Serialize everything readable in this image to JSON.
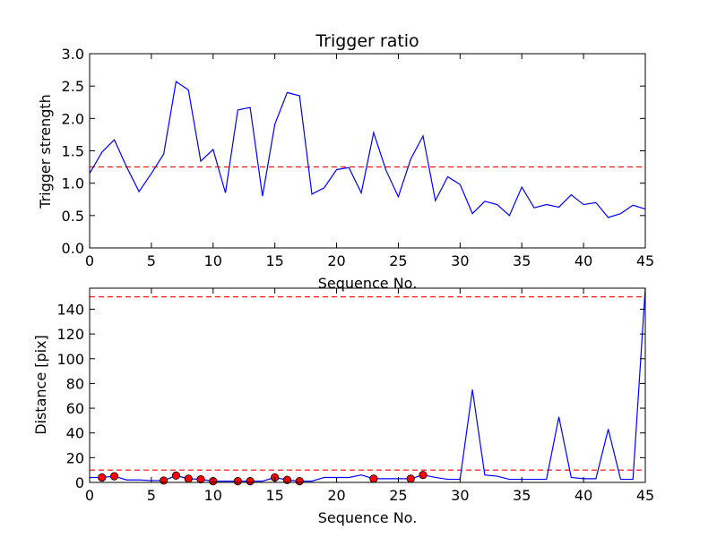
{
  "chart_data": [
    {
      "type": "line",
      "title": "Trigger ratio",
      "xlabel": "Sequence No.",
      "ylabel": "Trigger strength",
      "xlim": [
        0,
        45
      ],
      "ylim": [
        0,
        3.0
      ],
      "xticks": [
        "0",
        "5",
        "10",
        "15",
        "20",
        "25",
        "30",
        "35",
        "40",
        "45"
      ],
      "yticks": [
        "0.0",
        "0.5",
        "1.0",
        "1.5",
        "2.0",
        "2.5",
        "3.0"
      ],
      "colors": {
        "line": "#0000ff",
        "threshold": "#ff0000"
      },
      "series": [
        {
          "x": [
            0,
            1,
            2,
            3,
            4,
            5,
            6,
            7,
            8,
            9,
            10,
            11,
            12,
            13,
            14,
            15,
            16,
            17,
            18,
            19,
            20,
            21,
            22,
            23,
            24,
            25,
            26,
            27,
            28,
            29,
            30,
            31,
            32,
            33,
            34,
            35,
            36,
            37,
            38,
            39,
            40,
            41,
            42,
            43,
            44,
            45
          ],
          "values": [
            1.15,
            1.48,
            1.67,
            1.25,
            0.87,
            1.15,
            1.45,
            2.57,
            2.44,
            1.34,
            1.52,
            0.85,
            2.13,
            2.17,
            0.8,
            1.91,
            2.4,
            2.35,
            0.83,
            0.93,
            1.21,
            1.24,
            0.85,
            1.78,
            1.2,
            0.79,
            1.37,
            1.73,
            0.73,
            1.1,
            0.98,
            0.53,
            0.72,
            0.67,
            0.5,
            0.94,
            0.62,
            0.67,
            0.63,
            0.82,
            0.67,
            0.7,
            0.47,
            0.53,
            0.66,
            0.6
          ]
        }
      ],
      "threshold": 1.25
    },
    {
      "type": "line",
      "title": "",
      "xlabel": "Sequence No.",
      "ylabel": "Distance [pix]",
      "xlim": [
        0,
        45
      ],
      "ylim": [
        0,
        157
      ],
      "xticks": [
        "0",
        "5",
        "10",
        "15",
        "20",
        "25",
        "30",
        "35",
        "40",
        "45"
      ],
      "yticks": [
        "0",
        "20",
        "40",
        "60",
        "80",
        "100",
        "120",
        "140"
      ],
      "colors": {
        "line": "#0000ff",
        "threshold": "#ff0000",
        "marker": "#ff0000"
      },
      "series": [
        {
          "x": [
            0,
            1,
            2,
            3,
            4,
            5,
            6,
            7,
            8,
            9,
            10,
            11,
            12,
            13,
            14,
            15,
            16,
            17,
            18,
            19,
            20,
            21,
            22,
            23,
            24,
            25,
            26,
            27,
            28,
            29,
            30,
            31,
            32,
            33,
            34,
            35,
            36,
            37,
            38,
            39,
            40,
            41,
            42,
            43,
            44,
            45
          ],
          "values": [
            4,
            4,
            5,
            2,
            2,
            1.5,
            1.5,
            5.5,
            3,
            2.5,
            1,
            1,
            1,
            1,
            1,
            4,
            2,
            1,
            1,
            4,
            4,
            4,
            6,
            3,
            3,
            3,
            3,
            6,
            4,
            2.5,
            2.5,
            75,
            6,
            5,
            2.5,
            2.5,
            2.5,
            2.5,
            53,
            4,
            3,
            3,
            43,
            2.5,
            2.5,
            157
          ]
        }
      ],
      "markers": {
        "x": [
          1,
          2,
          6,
          7,
          8,
          9,
          10,
          12,
          13,
          15,
          16,
          17,
          23,
          26,
          27
        ],
        "values": [
          4,
          5,
          1.5,
          5.5,
          3,
          2.5,
          1,
          1,
          1,
          4,
          2,
          1,
          3,
          3,
          6
        ]
      },
      "thresholds": [
        10,
        150
      ]
    }
  ]
}
